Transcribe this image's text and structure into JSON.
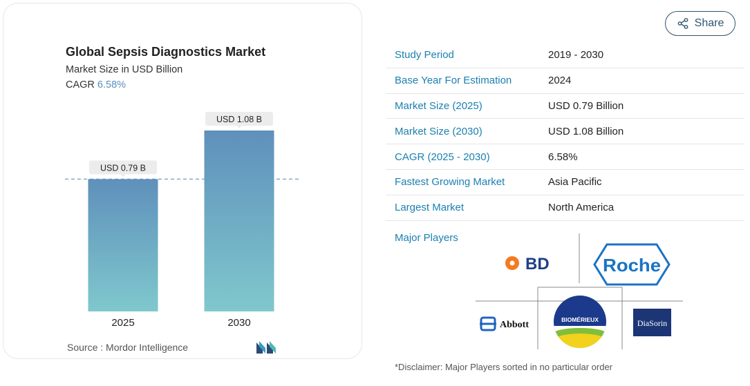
{
  "share": {
    "label": "Share",
    "icon": "share-icon"
  },
  "chart_data": {
    "type": "bar",
    "title": "Global Sepsis Diagnostics Market",
    "subtitle": "Market Size in USD Billion",
    "cagr_label": "CAGR",
    "cagr_value": "6.58%",
    "categories": [
      "2025",
      "2030"
    ],
    "values": [
      0.79,
      1.08
    ],
    "data_labels": [
      "USD 0.79 B",
      "USD 1.08 B"
    ],
    "ylim": [
      0,
      1.08
    ],
    "reference_line": 0.79,
    "grid": false,
    "colors": {
      "bar_top": "#5f90bb",
      "bar_bottom": "#7fc8cd",
      "label_bg": "#ececec",
      "ref_line": "#6d9cc7"
    }
  },
  "source": {
    "label": "Source :",
    "name": "Mordor Intelligence"
  },
  "facts": [
    {
      "label": "Study Period",
      "value": "2019 - 2030"
    },
    {
      "label": "Base Year For Estimation",
      "value": "2024"
    },
    {
      "label": "Market Size (2025)",
      "value": "USD 0.79 Billion"
    },
    {
      "label": "Market Size (2030)",
      "value": "USD 1.08 Billion"
    },
    {
      "label": "CAGR (2025 - 2030)",
      "value": "6.58%"
    },
    {
      "label": "Fastest Growing Market",
      "value": "Asia Pacific"
    },
    {
      "label": "Largest Market",
      "value": "North America"
    }
  ],
  "major_players": {
    "label": "Major Players",
    "logos": [
      "BD",
      "Roche",
      "Abbott",
      "BIOMÉRIEUX",
      "DiaSorin"
    ]
  },
  "disclaimer": "*Disclaimer: Major Players sorted in no particular order"
}
